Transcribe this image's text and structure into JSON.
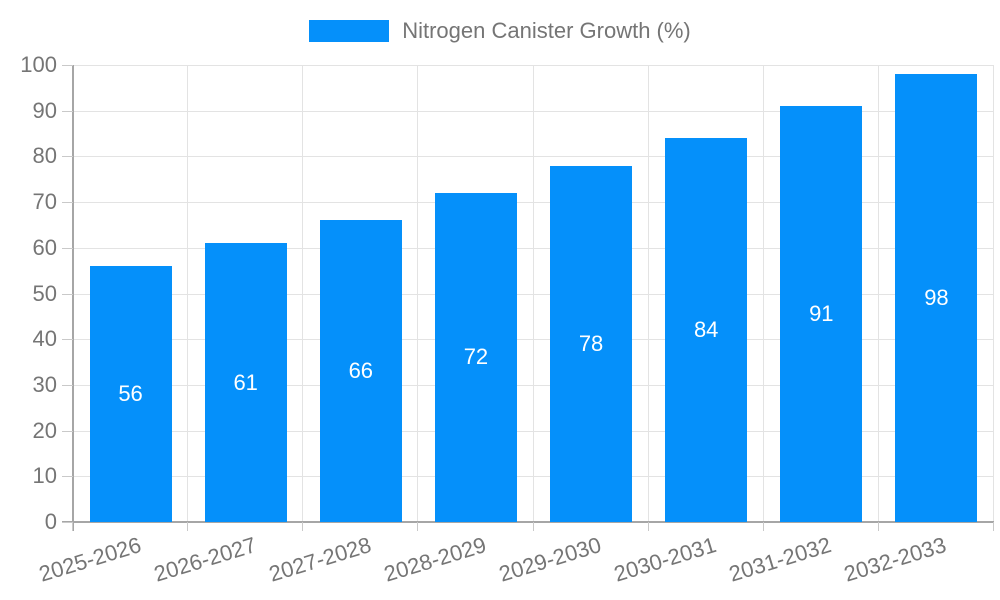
{
  "legend": {
    "label": "Nitrogen Canister Growth (%)"
  },
  "chart_data": {
    "type": "bar",
    "title": "",
    "series_name": "Nitrogen Canister Growth (%)",
    "categories": [
      "2025-2026",
      "2026-2027",
      "2027-2028",
      "2028-2029",
      "2029-2030",
      "2030-2031",
      "2031-2032",
      "2032-2033"
    ],
    "values": [
      56,
      61,
      66,
      72,
      78,
      84,
      91,
      98
    ],
    "xlabel": "",
    "ylabel": "",
    "ylim": [
      0,
      100
    ],
    "ytick_step": 10,
    "yticks": [
      0,
      10,
      20,
      30,
      40,
      50,
      60,
      70,
      80,
      90,
      100
    ],
    "grid": true,
    "legend_position": "top-center",
    "bar_labels_inside": true,
    "colors": {
      "bar": "#0590FA",
      "bar_value_text": "#ffffff",
      "axis_text": "#757575",
      "gridline": "#e3e3e3",
      "axis_line": "#a6a6a6",
      "tick": "#c9c9c9",
      "background": "#ffffff"
    }
  }
}
